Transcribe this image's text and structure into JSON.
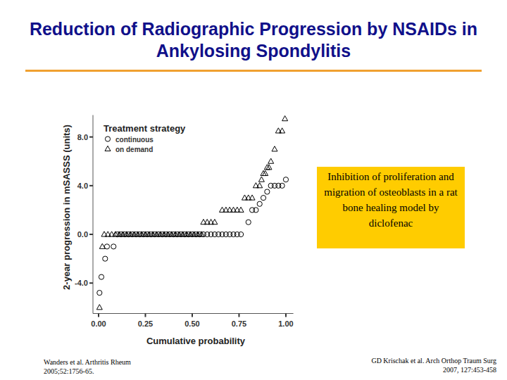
{
  "chart_data": {
    "type": "scatter",
    "title": "Reduction of Radiographic Progression by NSAIDs in Ankylosing Spondylitis",
    "x_label": "Cumulative probability",
    "y_label": "2-year progression in mSASSS (units)",
    "legend_title": "Treatment strategy",
    "legend": "top-left",
    "grid": false,
    "annotation": "Inhibition of proliferation and migration of osteoblasts in a rat bone healing model by diclofenac",
    "xlim": [
      -0.03,
      1.04
    ],
    "xticks": [
      {
        "value": 0,
        "label": "0.00"
      },
      {
        "value": 0.25,
        "label": "0.25"
      },
      {
        "value": 0.5,
        "label": "0.50"
      },
      {
        "value": 0.75,
        "label": "0.75"
      },
      {
        "value": 1,
        "label": "1.00"
      }
    ],
    "ylim": [
      -6.5,
      9.8
    ],
    "yticks": [
      {
        "value": -4,
        "label": "-4.0"
      },
      {
        "value": 0,
        "label": "0.0"
      },
      {
        "value": 4,
        "label": "4.0"
      },
      {
        "value": 8,
        "label": "8.0"
      }
    ],
    "series": [
      {
        "name": "continuous",
        "color": "#000000",
        "marker": "circle",
        "x": [
          0.005,
          0.015,
          0.035,
          0.045,
          0.08,
          0.1,
          0.12,
          0.14,
          0.16,
          0.18,
          0.2,
          0.22,
          0.24,
          0.26,
          0.28,
          0.3,
          0.32,
          0.34,
          0.36,
          0.38,
          0.4,
          0.42,
          0.44,
          0.46,
          0.48,
          0.5,
          0.52,
          0.54,
          0.56,
          0.58,
          0.6,
          0.62,
          0.64,
          0.66,
          0.68,
          0.7,
          0.72,
          0.74,
          0.76,
          0.8,
          0.82,
          0.84,
          0.86,
          0.88,
          0.9,
          0.92,
          0.94,
          0.96,
          0.98,
          1.0
        ],
        "values": [
          -4.8,
          -3.5,
          -2.0,
          -1.0,
          -1.0,
          0,
          0,
          0,
          0,
          0,
          0,
          0,
          0,
          0,
          0,
          0,
          0,
          0,
          0,
          0,
          0,
          0,
          0,
          0,
          0,
          0,
          0,
          0,
          0,
          0,
          0,
          0,
          0,
          0,
          0,
          0,
          0,
          0,
          0,
          1.0,
          2.0,
          2.0,
          2.5,
          3.0,
          3.5,
          4.0,
          4.0,
          4.0,
          4.0,
          4.5
        ]
      },
      {
        "name": "on demand",
        "color": "#000000",
        "marker": "triangle",
        "x": [
          0.005,
          0.02,
          0.03,
          0.05,
          0.07,
          0.09,
          0.11,
          0.13,
          0.15,
          0.17,
          0.19,
          0.21,
          0.23,
          0.25,
          0.27,
          0.29,
          0.31,
          0.33,
          0.35,
          0.37,
          0.39,
          0.41,
          0.43,
          0.45,
          0.47,
          0.49,
          0.51,
          0.53,
          0.55,
          0.56,
          0.58,
          0.6,
          0.62,
          0.66,
          0.68,
          0.7,
          0.72,
          0.74,
          0.76,
          0.78,
          0.8,
          0.82,
          0.84,
          0.86,
          0.87,
          0.88,
          0.89,
          0.9,
          0.91,
          0.92,
          0.94,
          0.96,
          0.98,
          0.995
        ],
        "values": [
          -6.0,
          -1.0,
          0,
          0,
          0,
          0,
          0,
          0,
          0,
          0,
          0,
          0,
          0,
          0,
          0,
          0,
          0,
          0,
          0,
          0,
          0,
          0,
          0,
          0,
          0,
          0,
          0,
          0,
          0,
          1.0,
          1.0,
          1.0,
          1.0,
          2.0,
          2.0,
          2.0,
          2.0,
          2.0,
          2.0,
          3.0,
          3.0,
          3.0,
          4.0,
          4.0,
          4.5,
          5.0,
          5.0,
          5.5,
          5.5,
          6.0,
          7.0,
          8.5,
          8.5,
          9.5
        ]
      }
    ]
  },
  "slide": {
    "citations": [
      "Wanders et al. Arthritis Rheum 2005;52:1756-65.",
      "GD Krischak et al. Arch Orthop Traum Surg 2007, 127:453-458"
    ]
  }
}
